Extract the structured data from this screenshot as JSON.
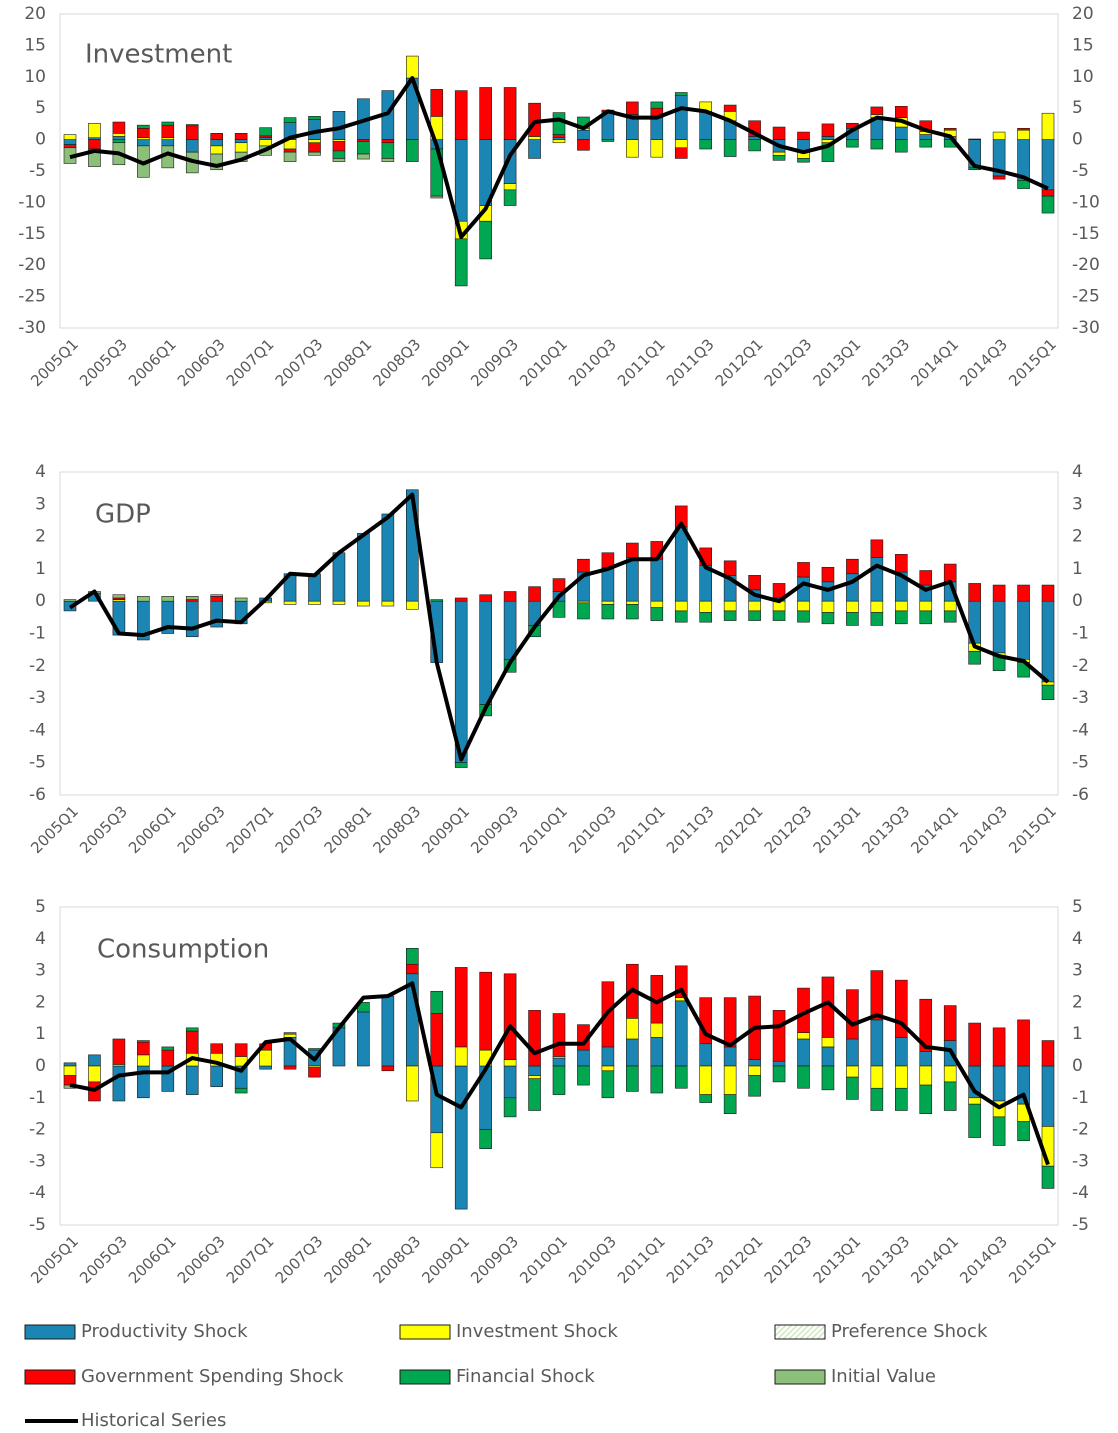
{
  "legend": {
    "series": [
      {
        "name": "Productivity Shock",
        "color": "#1b86b3"
      },
      {
        "name": "Investment Shock",
        "color": "#ffff00"
      },
      {
        "name": "Preference Shock",
        "color": "#cfe8c0"
      },
      {
        "name": "Government Spending Shock",
        "color": "#ff0000"
      },
      {
        "name": "Financial Shock",
        "color": "#00a650"
      },
      {
        "name": "Initial Value",
        "color": "#8cc07a"
      }
    ],
    "line": {
      "name": "Historical Series",
      "color": "#000000"
    }
  },
  "chart_data": [
    {
      "type": "bar",
      "title": "Investment",
      "categories": [
        "2005Q1",
        null,
        "2005Q3",
        null,
        "2006Q1",
        null,
        "2006Q3",
        null,
        "2007Q1",
        null,
        "2007Q3",
        null,
        "2008Q1",
        null,
        "2008Q3",
        null,
        "2009Q1",
        null,
        "2009Q3",
        null,
        "2010Q1",
        null,
        "2010Q3",
        null,
        "2011Q1",
        null,
        "2011Q3",
        null,
        "2012Q1",
        null,
        "2012Q3",
        null,
        "2013Q1",
        null,
        "2013Q3",
        null,
        "2014Q1",
        null,
        "2014Q3",
        null,
        "2015Q1"
      ],
      "ylim": [
        -30,
        20
      ],
      "yticks": [
        -30,
        -25,
        -20,
        -15,
        -10,
        -5,
        0,
        5,
        10,
        15,
        20
      ],
      "series": [
        {
          "values": [
            -0.8,
            0.3,
            0.5,
            -1,
            -1,
            -2,
            -1,
            -0.5,
            0.3,
            2.7,
            3.2,
            4.5,
            6.5,
            7.8,
            9.8,
            -1.5,
            -13,
            -10.5,
            -7,
            -3,
            0.3,
            1.5,
            4.5,
            4,
            3.5,
            7,
            4.5,
            3,
            0.5,
            -2,
            -2,
            0.5,
            1.8,
            3.5,
            2,
            0.8,
            0.5,
            -4.5,
            -5.8,
            -6.5,
            -8
          ]
        },
        {
          "values": [
            0.8,
            2.3,
            0.5,
            0.3,
            0.3,
            0,
            -1.3,
            -1.5,
            -1,
            -1.5,
            -0.5,
            -0.3,
            0,
            0,
            3.5,
            3.7,
            -2.8,
            -2.5,
            -1,
            0.5,
            -0.5,
            0.3,
            0,
            -2.8,
            -2.8,
            -1.3,
            1.5,
            1.5,
            0,
            -0.5,
            -1,
            -0.5,
            0,
            0.5,
            1.5,
            0.5,
            1,
            0,
            1.2,
            1.5,
            4.2
          ]
        },
        {
          "values": [
            0,
            0,
            0,
            0,
            0,
            0,
            0,
            0,
            0,
            0,
            0,
            0,
            0,
            0,
            0,
            0,
            0,
            0,
            0,
            0,
            0,
            0,
            0,
            0,
            0,
            0,
            0,
            0,
            0,
            0,
            0,
            0,
            0,
            0,
            0,
            0,
            0,
            0,
            0,
            0,
            0
          ]
        },
        {
          "values": [
            -0.5,
            -1.5,
            1.8,
            1.5,
            2,
            2.2,
            1,
            1,
            0.3,
            -0.5,
            -1.5,
            -1.5,
            -0.3,
            -0.5,
            0,
            4.3,
            7.8,
            8.3,
            8.3,
            5.3,
            0.5,
            -1.7,
            0.2,
            2,
            1.5,
            -1.7,
            0,
            1,
            2.5,
            2,
            1.2,
            2,
            0.8,
            1.2,
            1.8,
            1.7,
            0.3,
            0.1,
            -0.5,
            0.3,
            -1
          ]
        },
        {
          "values": [
            0,
            -0.3,
            -0.5,
            0.5,
            0.5,
            0.2,
            0,
            0,
            1.3,
            0.8,
            0.5,
            -1.2,
            -2,
            -2.5,
            -3.5,
            -7.5,
            -7.5,
            -6,
            -2.5,
            0,
            3.5,
            1.8,
            -0.3,
            0,
            1,
            0.5,
            -1.5,
            -2.7,
            -1.8,
            -0.8,
            -0.6,
            -3,
            -1.2,
            -1.5,
            -2,
            -1.2,
            -1.2,
            -0.3,
            0,
            -1.3,
            -2.7
          ]
        },
        {
          "values": [
            -2.5,
            -2.5,
            -3.5,
            -5,
            -3.5,
            -3.3,
            -2.5,
            -1.5,
            -1.5,
            -1.5,
            -0.5,
            -0.5,
            -0.8,
            -0.5,
            0,
            -0.3,
            0,
            0,
            0,
            0,
            0,
            0,
            0,
            0,
            0,
            0,
            0,
            0,
            0,
            0,
            0,
            0,
            0,
            0,
            0,
            0,
            0,
            0,
            0,
            0,
            0
          ]
        }
      ],
      "line": {
        "values": [
          -2.8,
          -1.8,
          -2.2,
          -3.8,
          -2.2,
          -3.4,
          -4.2,
          -3.2,
          -1.6,
          0.3,
          1.2,
          1.8,
          3,
          4.2,
          9.8,
          -1,
          -15.5,
          -11,
          -2.5,
          2.8,
          3.2,
          1.8,
          4.5,
          3.5,
          3.5,
          5,
          4.5,
          3,
          1,
          -1,
          -2,
          -1,
          1.5,
          3.5,
          3,
          1.5,
          0.5,
          -4.2,
          -5,
          -6,
          -7.8
        ]
      }
    },
    {
      "type": "bar",
      "title": "GDP",
      "categories": [
        "2005Q1",
        null,
        "2005Q3",
        null,
        "2006Q1",
        null,
        "2006Q3",
        null,
        "2007Q1",
        null,
        "2007Q3",
        null,
        "2008Q1",
        null,
        "2008Q3",
        null,
        "2009Q1",
        null,
        "2009Q3",
        null,
        "2010Q1",
        null,
        "2010Q3",
        null,
        "2011Q1",
        null,
        "2011Q3",
        null,
        "2012Q1",
        null,
        "2012Q3",
        null,
        "2013Q1",
        null,
        "2013Q3",
        null,
        "2014Q1",
        null,
        "2014Q3",
        null,
        "2015Q1"
      ],
      "ylim": [
        -6,
        4
      ],
      "yticks": [
        -6,
        -5,
        -4,
        -3,
        -2,
        -1,
        0,
        1,
        2,
        3,
        4
      ],
      "series": [
        {
          "values": [
            -0.3,
            0.25,
            -1.05,
            -1.2,
            -1,
            -1.1,
            -0.8,
            -0.7,
            0.1,
            0.85,
            0.85,
            1.5,
            2.1,
            2.7,
            3.45,
            -1.9,
            -5,
            -3.2,
            -1.8,
            -0.75,
            0.3,
            0.9,
            1.05,
            1.35,
            1.3,
            2.3,
            1.1,
            0.8,
            0.35,
            0.1,
            0.75,
            0.6,
            0.85,
            1.35,
            0.9,
            0.5,
            0.6,
            -1.3,
            -1.6,
            -1.8,
            -2.5
          ]
        },
        {
          "values": [
            0,
            0,
            0.05,
            0,
            0,
            0,
            0,
            0,
            -0.05,
            -0.1,
            -0.1,
            -0.1,
            -0.15,
            -0.15,
            -0.25,
            0,
            0,
            0,
            0,
            0,
            0,
            -0.05,
            -0.1,
            -0.1,
            -0.2,
            -0.3,
            -0.35,
            -0.3,
            -0.3,
            -0.3,
            -0.3,
            -0.35,
            -0.35,
            -0.35,
            -0.3,
            -0.3,
            -0.3,
            -0.25,
            -0.1,
            -0.1,
            -0.1
          ]
        },
        {
          "values": [
            0,
            0,
            0,
            0,
            0,
            0,
            0,
            0,
            0,
            0,
            0,
            0,
            0,
            0,
            0,
            0,
            0,
            0,
            0,
            0,
            0,
            0,
            0,
            0,
            0,
            0,
            0,
            0,
            0,
            0,
            0,
            0,
            0,
            0,
            0,
            0,
            0,
            0,
            0,
            0,
            0
          ]
        },
        {
          "values": [
            0,
            0,
            0.05,
            0,
            0,
            0.05,
            0.15,
            0,
            0,
            0,
            0,
            0,
            0,
            0,
            0,
            0,
            0.1,
            0.2,
            0.3,
            0.45,
            0.4,
            0.4,
            0.45,
            0.45,
            0.55,
            0.65,
            0.55,
            0.45,
            0.45,
            0.45,
            0.45,
            0.45,
            0.45,
            0.55,
            0.55,
            0.45,
            0.55,
            0.55,
            0.5,
            0.5,
            0.5
          ]
        },
        {
          "values": [
            0,
            0,
            0,
            0,
            0,
            0,
            0,
            0,
            0,
            0,
            0,
            0,
            0,
            0,
            0,
            0.05,
            -0.15,
            -0.35,
            -0.4,
            -0.35,
            -0.5,
            -0.5,
            -0.45,
            -0.45,
            -0.4,
            -0.35,
            -0.3,
            -0.3,
            -0.3,
            -0.3,
            -0.35,
            -0.35,
            -0.4,
            -0.4,
            -0.4,
            -0.4,
            -0.35,
            -0.4,
            -0.45,
            -0.45,
            -0.45
          ]
        },
        {
          "values": [
            0.05,
            0.05,
            0.1,
            0.15,
            0.15,
            0.1,
            0.05,
            0.1,
            0,
            0,
            0,
            0,
            0,
            0,
            0,
            0,
            0,
            0,
            0,
            0,
            0,
            0,
            0,
            0,
            0,
            0,
            0,
            0,
            0,
            0,
            0,
            0,
            0,
            0,
            0,
            0,
            0,
            0,
            0,
            0,
            0
          ]
        }
      ],
      "line": {
        "values": [
          -0.2,
          0.3,
          -1,
          -1.05,
          -0.8,
          -0.85,
          -0.6,
          -0.65,
          0.05,
          0.85,
          0.8,
          1.5,
          2.05,
          2.6,
          3.3,
          -1.9,
          -4.9,
          -3.3,
          -1.9,
          -0.8,
          0.15,
          0.8,
          1,
          1.3,
          1.3,
          2.4,
          1.05,
          0.7,
          0.2,
          0,
          0.55,
          0.35,
          0.6,
          1.1,
          0.8,
          0.35,
          0.6,
          -1.4,
          -1.7,
          -1.85,
          -2.5
        ]
      }
    },
    {
      "type": "bar",
      "title": "Consumption",
      "categories": [
        "2005Q1",
        null,
        "2005Q3",
        null,
        "2006Q1",
        null,
        "2006Q3",
        null,
        "2007Q1",
        null,
        "2007Q3",
        null,
        "2008Q1",
        null,
        "2008Q3",
        null,
        "2009Q1",
        null,
        "2009Q3",
        null,
        "2010Q1",
        null,
        "2010Q3",
        null,
        "2011Q1",
        null,
        "2011Q3",
        null,
        "2012Q1",
        null,
        "2012Q3",
        null,
        "2013Q1",
        null,
        "2013Q3",
        null,
        "2014Q1",
        null,
        "2014Q3",
        null,
        "2015Q1"
      ],
      "ylim": [
        -5,
        5
      ],
      "yticks": [
        -5,
        -4,
        -3,
        -2,
        -1,
        0,
        1,
        2,
        3,
        4,
        5
      ],
      "series": [
        {
          "values": [
            0.1,
            0.35,
            -1.1,
            -1,
            -0.8,
            -0.9,
            -0.65,
            -0.7,
            -0.1,
            0.9,
            0.5,
            1.2,
            1.7,
            2.2,
            2.9,
            -2.1,
            -4.5,
            -2,
            -1,
            -0.3,
            0.25,
            0.5,
            0.6,
            0.85,
            0.9,
            2.05,
            0.7,
            0.6,
            0.2,
            0.15,
            0.85,
            0.6,
            0.85,
            1.45,
            0.9,
            0.45,
            0.8,
            -1,
            -1.1,
            -1.2,
            -1.9
          ]
        },
        {
          "values": [
            -0.3,
            -0.5,
            0.05,
            0.35,
            0,
            0.4,
            0.4,
            0.3,
            0.5,
            0.1,
            -0.05,
            0,
            0,
            0,
            -1.1,
            -1.1,
            0.6,
            0.5,
            0.2,
            -0.1,
            0.05,
            0,
            -0.15,
            0.65,
            0.45,
            0.1,
            -0.9,
            -0.9,
            -0.3,
            0,
            0.2,
            0.3,
            -0.35,
            -0.7,
            -0.7,
            -0.6,
            -0.5,
            -0.2,
            -0.5,
            -0.55,
            -1.25
          ]
        },
        {
          "values": [
            0,
            0,
            0,
            0,
            0,
            0,
            0,
            0,
            0,
            0,
            0,
            0,
            0,
            0,
            0,
            0,
            0,
            0,
            0,
            0,
            0,
            0,
            0,
            0,
            0,
            0,
            0,
            0,
            0,
            0,
            0,
            0,
            0,
            0,
            0,
            0,
            0,
            0,
            0,
            0,
            0
          ]
        },
        {
          "values": [
            -0.3,
            -0.6,
            0.8,
            0.4,
            0.5,
            0.7,
            0.3,
            0.4,
            0.2,
            -0.1,
            -0.3,
            0,
            0,
            -0.15,
            0.3,
            1.65,
            2.5,
            2.45,
            2.7,
            1.75,
            1.35,
            0.8,
            2.05,
            1.7,
            1.5,
            1,
            1.45,
            1.55,
            2,
            1.6,
            1.4,
            1.9,
            1.55,
            1.55,
            1.8,
            1.65,
            1.1,
            1.35,
            1.2,
            1.45,
            0.8
          ]
        },
        {
          "values": [
            0,
            0,
            0,
            0.05,
            0.1,
            0.1,
            0,
            -0.15,
            0,
            0.05,
            0.05,
            0.15,
            0.3,
            0,
            0.5,
            0.7,
            0,
            -0.6,
            -0.6,
            -1,
            -0.9,
            -0.6,
            -0.85,
            -0.8,
            -0.85,
            -0.7,
            -0.25,
            -0.6,
            -0.65,
            -0.5,
            -0.7,
            -0.75,
            -0.7,
            -0.7,
            -0.7,
            -0.9,
            -0.9,
            -1.05,
            -0.9,
            -0.6,
            -0.7
          ]
        },
        {
          "values": [
            -0.1,
            0,
            0,
            0,
            0,
            0,
            0,
            0,
            0,
            0,
            0,
            0,
            0,
            0,
            0,
            0,
            0,
            0,
            0,
            0,
            0,
            0,
            0,
            0,
            0,
            0,
            0,
            0,
            0,
            0,
            0,
            0,
            0,
            0,
            0,
            0,
            0,
            0,
            0,
            0,
            0
          ]
        }
      ],
      "line": {
        "values": [
          -0.6,
          -0.75,
          -0.3,
          -0.2,
          -0.2,
          0.25,
          0.1,
          -0.15,
          0.75,
          0.85,
          0.2,
          1.2,
          2.15,
          2.2,
          2.6,
          -0.9,
          -1.3,
          -0.1,
          1.25,
          0.4,
          0.7,
          0.7,
          1.7,
          2.4,
          2,
          2.4,
          1,
          0.65,
          1.2,
          1.25,
          1.65,
          2,
          1.3,
          1.6,
          1.35,
          0.6,
          0.5,
          -0.8,
          -1.3,
          -0.9,
          -3.1
        ]
      }
    }
  ]
}
